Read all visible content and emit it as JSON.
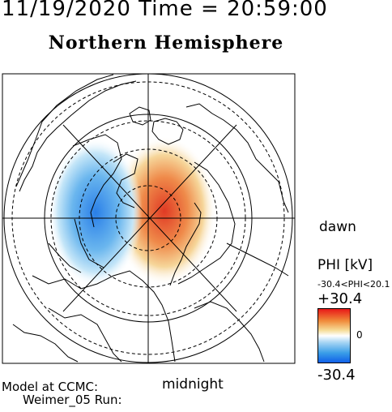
{
  "header": {
    "datetime": "11/19/2020 Time = 20:59:00",
    "title": "Northern Hemisphere"
  },
  "map": {
    "projection": "polar stereographic, north pole centered",
    "orientation_labels": {
      "dawn": "dawn",
      "midnight": "midnight"
    },
    "potential_cells": [
      {
        "sign": "positive",
        "color": "#e04020"
      },
      {
        "sign": "negative",
        "color": "#1e73e8"
      }
    ]
  },
  "legend": {
    "title": "PHI [kV]",
    "range_text": "-30.4<PHI<20.1",
    "max_label": "+30.4",
    "zero_label": "0",
    "min_label": "-30.4",
    "colors": {
      "max": "#e81818",
      "mid": "#ffffff",
      "min": "#1060e8"
    }
  },
  "footer": {
    "model_line": "Model at CCMC:",
    "run_line": "Weimer_05 Run:"
  }
}
